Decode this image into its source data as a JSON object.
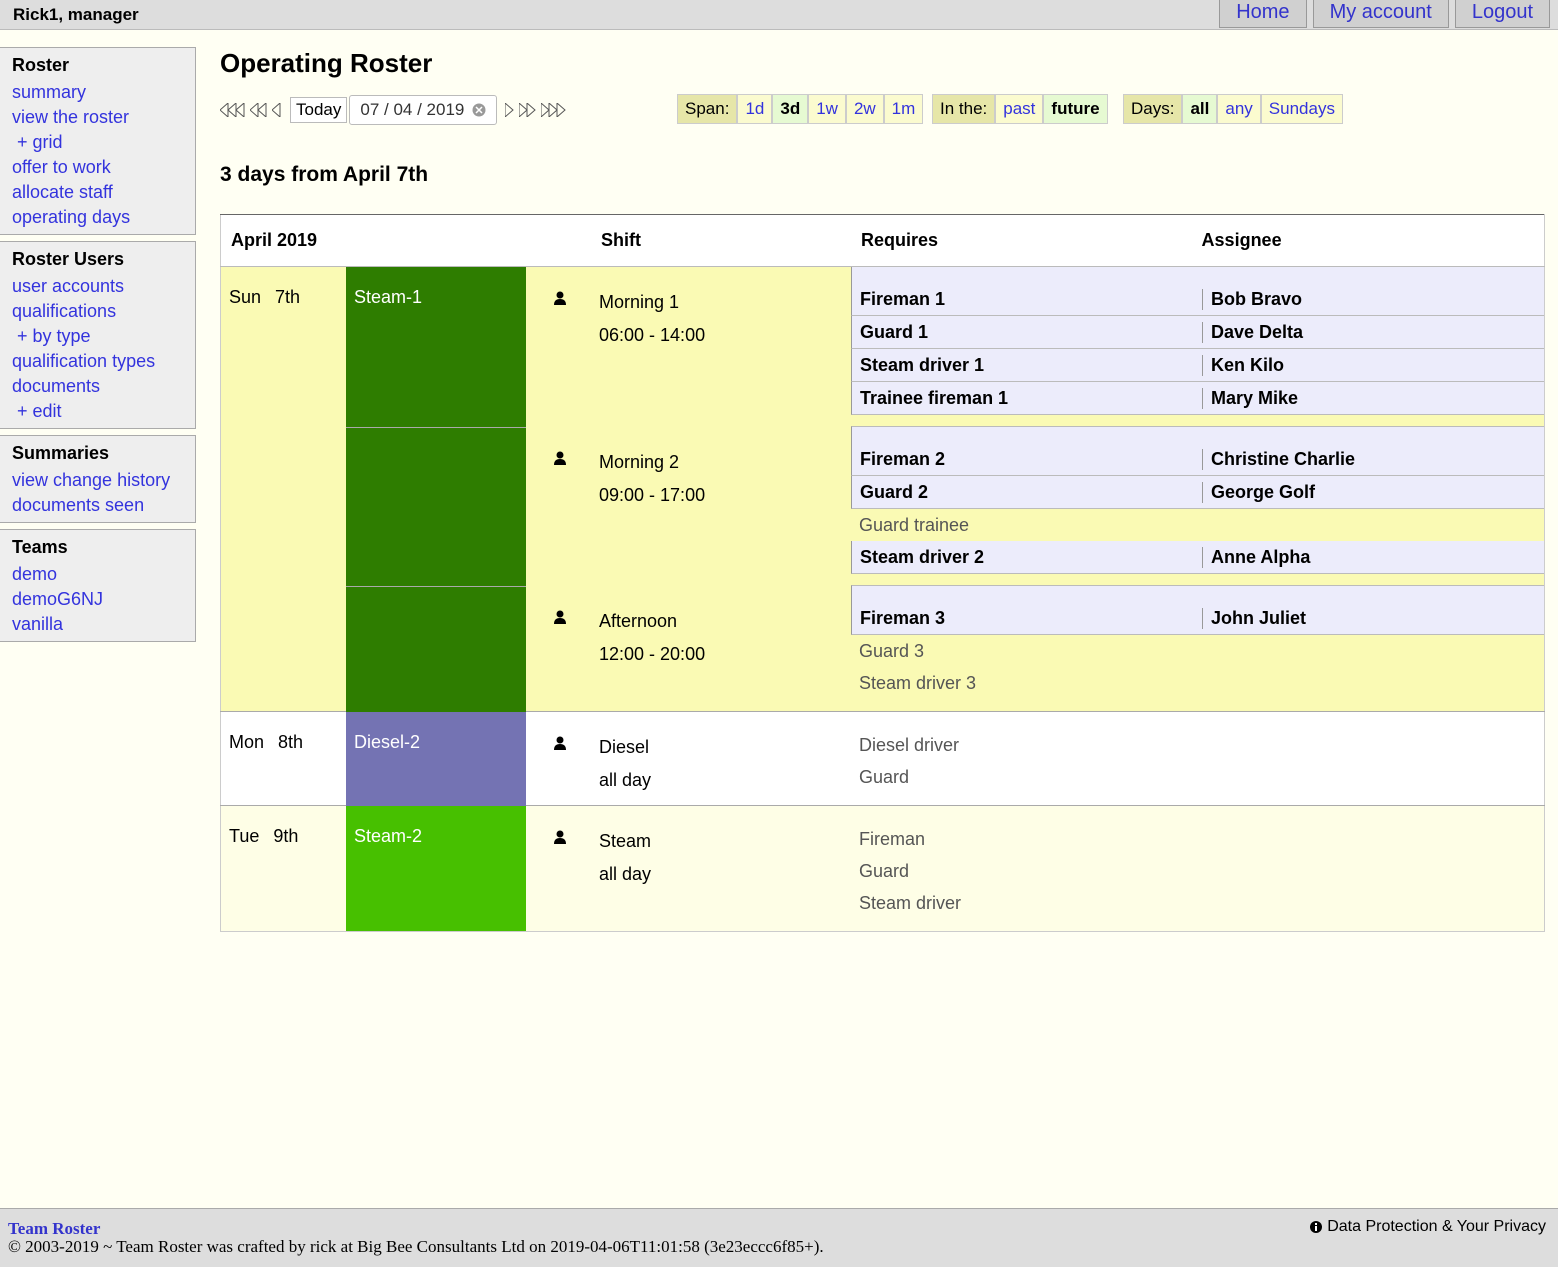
{
  "topbar": {
    "user": "Rick1, manager",
    "links": [
      "Home",
      "My account",
      "Logout"
    ]
  },
  "sidebar": [
    {
      "title": "Roster",
      "links": [
        "summary",
        "view the roster",
        "+ grid",
        "offer to work",
        "allocate staff",
        "operating days"
      ]
    },
    {
      "title": "Roster Users",
      "links": [
        "user accounts",
        "qualifications",
        "+ by type",
        "qualification types",
        "documents",
        "+ edit"
      ]
    },
    {
      "title": "Summaries",
      "links": [
        "view change history",
        "documents seen"
      ]
    },
    {
      "title": "Teams",
      "links": [
        "demo",
        "demoG6NJ",
        "vanilla"
      ]
    }
  ],
  "page_title": "Operating Roster",
  "nav": {
    "today": "Today",
    "date": "07 / 04 / 2019"
  },
  "filters": [
    {
      "label": "Span:",
      "options": [
        {
          "text": "1d",
          "active": false
        },
        {
          "text": "3d",
          "active": true
        },
        {
          "text": "1w",
          "active": false
        },
        {
          "text": "2w",
          "active": false
        },
        {
          "text": "1m",
          "active": false
        }
      ]
    },
    {
      "label": "In the:",
      "options": [
        {
          "text": "past",
          "active": false
        },
        {
          "text": "future",
          "active": true
        }
      ]
    },
    {
      "label": "Days:",
      "options": [
        {
          "text": "all",
          "active": true
        },
        {
          "text": "any",
          "active": false
        },
        {
          "text": "Sundays",
          "active": false
        }
      ]
    }
  ],
  "subtitle": "3 days from April 7th",
  "table": {
    "headers": [
      "April 2019",
      "Shift",
      "Requires",
      "Assignee"
    ],
    "days": [
      {
        "weekday": "Sun",
        "date": "7th",
        "background": "#fafab4",
        "train": "Steam-1",
        "train_color": "#2e7d00",
        "shifts": [
          {
            "name": "Morning 1",
            "time": "06:00 - 14:00",
            "requirements": [
              {
                "role": "Fireman 1",
                "assignee": "Bob Bravo"
              },
              {
                "role": "Guard 1",
                "assignee": "Dave Delta"
              },
              {
                "role": "Steam driver 1",
                "assignee": "Ken Kilo"
              },
              {
                "role": "Trainee fireman 1",
                "assignee": "Mary Mike"
              }
            ]
          },
          {
            "name": "Morning 2",
            "time": "09:00 - 17:00",
            "requirements": [
              {
                "role": "Fireman 2",
                "assignee": "Christine Charlie"
              },
              {
                "role": "Guard 2",
                "assignee": "George Golf"
              },
              {
                "role": "Guard trainee"
              },
              {
                "role": "Steam driver 2",
                "assignee": "Anne Alpha"
              }
            ]
          },
          {
            "name": "Afternoon",
            "time": "12:00 - 20:00",
            "requirements": [
              {
                "role": "Fireman 3",
                "assignee": "John Juliet"
              },
              {
                "role": "Guard 3"
              },
              {
                "role": "Steam driver 3"
              }
            ]
          }
        ]
      },
      {
        "weekday": "Mon",
        "date": "8th",
        "background": "#ffffff",
        "train": "Diesel-2",
        "train_color": "#7473b3",
        "shifts": [
          {
            "name": "Diesel",
            "time": "all day",
            "requirements": [
              {
                "role": "Diesel driver"
              },
              {
                "role": "Guard"
              }
            ]
          }
        ]
      },
      {
        "weekday": "Tue",
        "date": "9th",
        "background": "#fefee6",
        "train": "Steam-2",
        "train_color": "#47c000",
        "shifts": [
          {
            "name": "Steam",
            "time": "all day",
            "requirements": [
              {
                "role": "Fireman"
              },
              {
                "role": "Guard"
              },
              {
                "role": "Steam driver"
              }
            ]
          }
        ]
      }
    ]
  },
  "footer": {
    "brand": "Team Roster",
    "copyright": "© 2003-2019 ~ Team Roster was crafted by rick at Big Bee Consultants Ltd on 2019-04-06T11:01:58 (3e23eccc6f85+).",
    "privacy": "Data Protection & Your Privacy"
  }
}
